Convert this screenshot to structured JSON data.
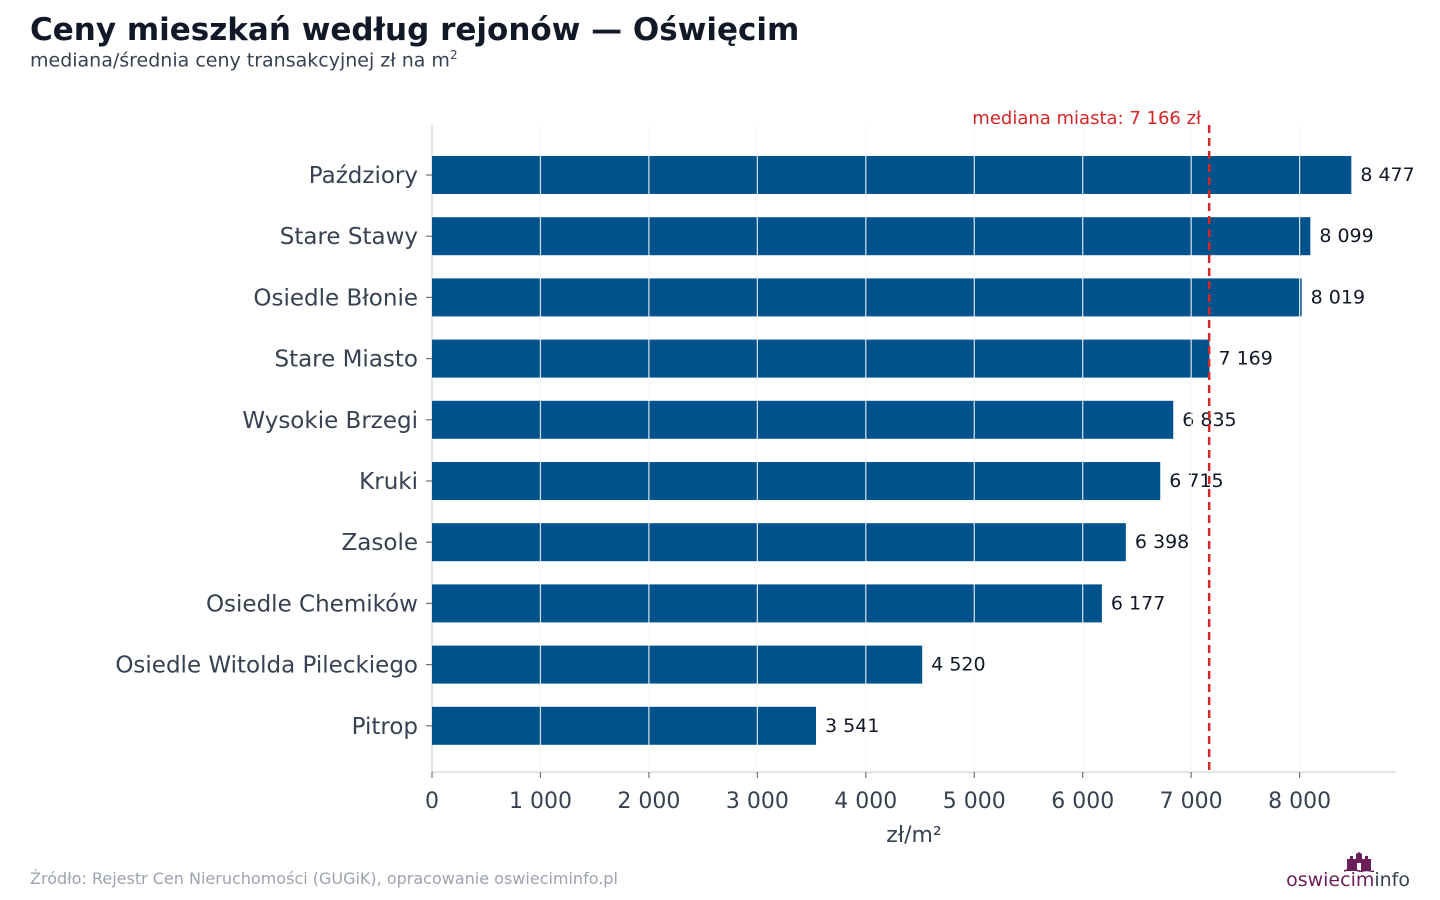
{
  "title": "Ceny mieszkań według rejonów — Oświęcim",
  "subtitle": "mediana/średnia ceny transakcyjnej zł na m",
  "subtitle_sup": "2",
  "source": "Źródło: Rejestr Cen Nieruchomości (GUGiK), opracowanie oswieciminfo.pl",
  "logo": {
    "part1": "oswiecim",
    "part2": "info"
  },
  "chart_data": {
    "type": "bar",
    "orientation": "horizontal",
    "categories": [
      "Paździory",
      "Stare Stawy",
      "Osiedle Błonie",
      "Stare Miasto",
      "Wysokie Brzegi",
      "Kruki",
      "Zasole",
      "Osiedle Chemików",
      "Osiedle Witolda Pileckiego",
      "Pitrop"
    ],
    "values": [
      8477,
      8099,
      8019,
      7169,
      6835,
      6715,
      6398,
      6177,
      4520,
      3541
    ],
    "value_labels": [
      "8 477",
      "8 099",
      "8 019",
      "7 169",
      "6 835",
      "6 715",
      "6 398",
      "6 177",
      "4 520",
      "3 541"
    ],
    "xlabel": "zł/m²",
    "xlim": [
      0,
      8900
    ],
    "xticks": [
      0,
      1000,
      2000,
      3000,
      4000,
      5000,
      6000,
      7000,
      8000
    ],
    "xtick_labels": [
      "0",
      "1 000",
      "2 000",
      "3 000",
      "4 000",
      "5 000",
      "6 000",
      "7 000",
      "8 000"
    ],
    "grid": true,
    "reference_line": {
      "value": 7166,
      "label": "mediana miasta: 7 166 zł"
    },
    "colors": {
      "bar": "#00528c",
      "reference": "#d62728",
      "grid": "#e5e7eb"
    }
  }
}
